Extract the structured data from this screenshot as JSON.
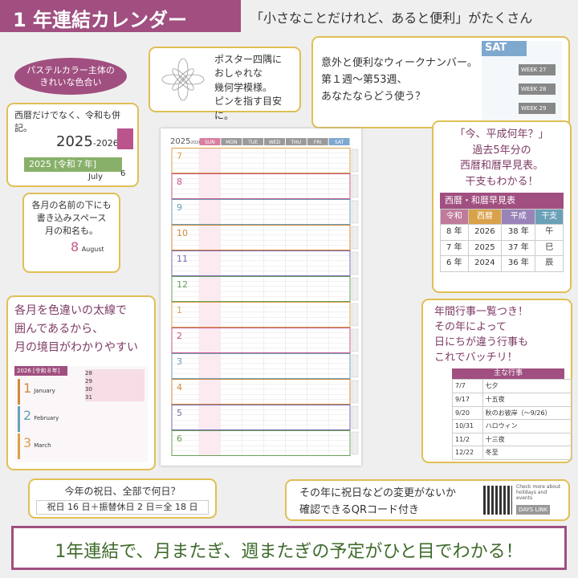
{
  "header": {
    "title": "1 年連結カレンダー",
    "tagline": "「小さなことだけれど、あると便利」がたくさん"
  },
  "badge": [
    "パステルカラー主体の",
    "きれいな色合い"
  ],
  "poster_corner": {
    "lines": [
      "ポスター四隅に",
      "おしゃれな",
      "幾何学模様。",
      "ピンを指す目安に。"
    ]
  },
  "week_number": {
    "lines": [
      "意外と便利なウィークナンバー。",
      "第１週〜第53週、",
      "あなたならどう使う？"
    ],
    "sample": {
      "day": "SAT",
      "weeks": [
        "WEEK 27",
        "WEEK 28",
        "WEEK 29"
      ]
    }
  },
  "era": {
    "lines": [
      "西暦だけでなく、令和も併記。"
    ],
    "sample": {
      "year": "2025",
      "year_end": "-2026",
      "era_year": "2025",
      "era_name": "[令和７年]",
      "month": "July",
      "week": "6"
    }
  },
  "month_name": {
    "lines": [
      "各月の名前の下にも",
      "書き込みスペース",
      "月の和名も。"
    ],
    "sample": {
      "month": "8",
      "name": "August"
    }
  },
  "month_border": {
    "lines": [
      "各月を色違いの太線で",
      "囲んであるから、",
      "月の境目がわかりやすい"
    ],
    "sample": {
      "year": "2026 [令和８年]",
      "months": [
        {
          "number": "1",
          "name": "January"
        },
        {
          "number": "2",
          "name": "February"
        },
        {
          "number": "3",
          "name": "March"
        }
      ],
      "dates": [
        "28",
        "29",
        "30",
        "31"
      ]
    }
  },
  "era_table": {
    "lines": [
      "「今、平成何年？」",
      "過去5年分の",
      "西暦和暦早見表。",
      "干支もわかる！"
    ],
    "title": "西暦・和暦早見表",
    "headers": [
      "令和",
      "西暦",
      "平成",
      "干支"
    ],
    "rows": [
      [
        "8 年",
        "2026",
        "38 年",
        "午"
      ],
      [
        "7 年",
        "2025",
        "37 年",
        "巳"
      ],
      [
        "6 年",
        "2024",
        "36 年",
        "辰"
      ]
    ]
  },
  "events": {
    "lines": [
      "年間行事一覧つき！",
      "その年によって",
      "日にちが違う行事も",
      "これでバッチリ！"
    ],
    "title": "主な行事",
    "rows": [
      [
        "7/7",
        "七夕"
      ],
      [
        "9/17",
        "十五夜"
      ],
      [
        "9/20",
        "秋のお彼岸（〜9/26）"
      ],
      [
        "10/31",
        "ハロウィン"
      ],
      [
        "11/2",
        "十三夜"
      ],
      [
        "12/22",
        "冬至"
      ]
    ]
  },
  "holidays": {
    "question": "今年の祝日、全部で何日？",
    "answer": "祝日 16 日＋振替休日 2 日＝全 18 日"
  },
  "qr": {
    "lines": [
      "その年に祝日などの変更がないか",
      "確認できるQRコード付き"
    ],
    "note": "Check more about holidays and events",
    "brand": "DAYS LINK"
  },
  "poster": {
    "year": "2025",
    "year_end": "-2026",
    "days": [
      "SUN",
      "MON",
      "TUE",
      "WED",
      "THU",
      "FRI",
      "SAT"
    ],
    "months": [
      "7",
      "8",
      "9",
      "10",
      "11",
      "12",
      "1",
      "2",
      "3",
      "4",
      "5",
      "6"
    ]
  },
  "footer": "1年連結で、月またぎ、週またぎの予定がひと目でわかる！"
}
